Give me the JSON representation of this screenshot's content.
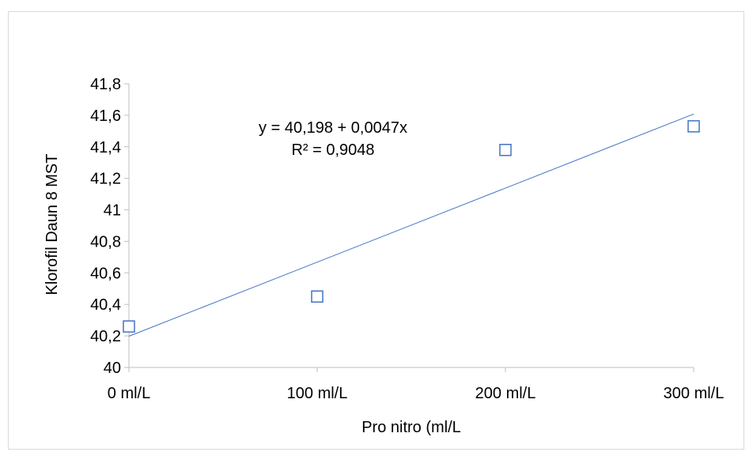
{
  "chart_data": {
    "type": "scatter",
    "title": "",
    "xlabel": "Pro nitro (ml/L",
    "ylabel": "Klorofil Daun 8 MST",
    "x_categories": [
      "0 ml/L",
      "100 ml/L",
      "200 ml/L",
      "300 ml/L"
    ],
    "x_values": [
      0,
      100,
      200,
      300
    ],
    "xlim": [
      0,
      300
    ],
    "ylim": [
      40,
      41.8
    ],
    "y_ticks": [
      40,
      40.2,
      40.4,
      40.6,
      40.8,
      41,
      41.2,
      41.4,
      41.6,
      41.8
    ],
    "y_tick_labels": [
      "40",
      "40,2",
      "40,4",
      "40,6",
      "40,8",
      "41",
      "41,2",
      "41,4",
      "41,6",
      "41,8"
    ],
    "series": [
      {
        "x": [
          0,
          100,
          200,
          300
        ],
        "y": [
          40.26,
          40.45,
          41.38,
          41.53
        ],
        "marker": "square-open",
        "color": "#4472c4"
      }
    ],
    "trendline": {
      "type": "linear",
      "intercept": 40.198,
      "slope": 0.0047,
      "color": "#4472c4",
      "equation_label": "y = 40,198 + 0,0047x",
      "r2_label": "R² = 0,9048"
    },
    "grid": false,
    "legend": "none"
  }
}
